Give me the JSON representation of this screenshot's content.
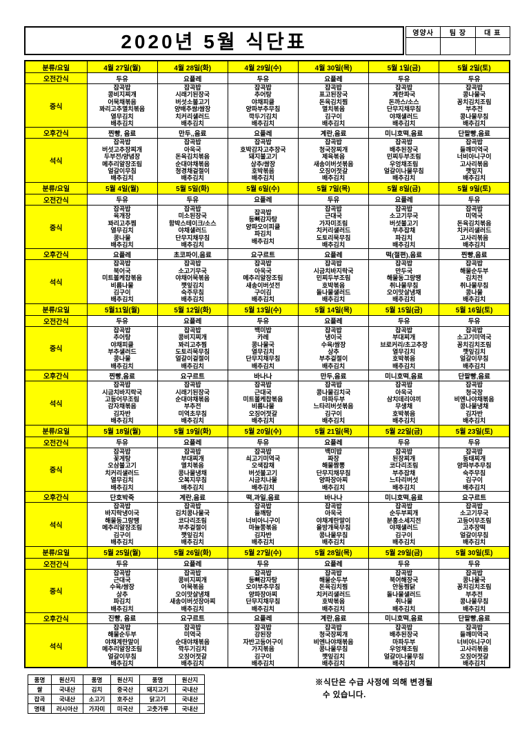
{
  "title": "2020년  5월  식단표",
  "signature": {
    "labels": [
      "영양사",
      "팀 장",
      "대 표"
    ]
  },
  "labels": {
    "category_day": "분류/요일",
    "morning_snack": "오전간식",
    "lunch": "중식",
    "afternoon_snack": "오후간식",
    "dinner": "석식"
  },
  "colors": {
    "highlight": "#ffff00",
    "border": "#000000"
  },
  "weeks": [
    {
      "days": [
        "4월 27일(월)",
        "4월 28일(화)",
        "4월 29일(수)",
        "4월 30일(목)",
        "5월 1일(금)",
        "5월 2일(토)"
      ],
      "morning": [
        "두유",
        "요플레",
        "두유",
        "요플레",
        "두유",
        "두유"
      ],
      "lunch": [
        [
          "잡곡밥",
          "콩비지찌개",
          "어묵채볶음",
          "꽈리고추멸치볶음",
          "열무김치",
          "배추김치"
        ],
        [
          "잡곡밥",
          "시래기된장국",
          "버섯소불고기",
          "양배추쌈/쌈장",
          "치커리샐러드",
          "배추김치"
        ],
        [
          "잡곡밥",
          "추어탕",
          "야채피클",
          "양파부추무침",
          "깍두기김치",
          "배추김치"
        ],
        [
          "잡곡밥",
          "표고된장국",
          "돈육김치찜",
          "멸치볶음",
          "김구이",
          "배추김치"
        ],
        [
          "잡곡밥",
          "계란파국",
          "돈까스/소스",
          "단무지채무침",
          "야채샐러드",
          "배추김치"
        ],
        [
          "잡곡밥",
          "콩나물국",
          "꽁치김치조림",
          "부추전",
          "콩나물무침",
          "배추김치"
        ]
      ],
      "afternoon": [
        "찐빵, 음료",
        "만두,,음료",
        "요플레",
        "계란,음료",
        "미니호떡,음료",
        "단팥빵,음료"
      ],
      "dinner": [
        [
          "잡곡밥",
          "버섯고추장찌개",
          "두부전/양념장",
          "메추리알장조림",
          "얼갈이무침",
          "배추김치"
        ],
        [
          "잡곡밥",
          "아욱국",
          "돈육김치볶음",
          "순대야채볶음",
          "청경채겉절이",
          "배추김치"
        ],
        [
          "잡곡밥",
          "호박감자고추장국",
          "돼지불고기",
          "상추/쌈장",
          "호박볶음",
          "배추김치"
        ],
        [
          "잡곡밥",
          "청국장찌개",
          "제육볶음",
          "새송이버섯볶음",
          "오징어젓갈",
          "배추김치"
        ],
        [
          "잡곡밥",
          "배추된장국",
          "민찌두부조림",
          "우엉채조림",
          "얼갈이나물무침",
          "배추김치"
        ],
        [
          "잡곡밥",
          "들깨미역국",
          "너비아니구이",
          "고사리볶음",
          "깻잎지",
          "배추김치"
        ]
      ]
    },
    {
      "days": [
        "5월 4일(월)",
        "5월 5일(화)",
        "5월 6일(수)",
        "5월 7일(목)",
        "5월 8일(금)",
        "5월 9일(토)"
      ],
      "morning": [
        "두유",
        "두유",
        "요플레",
        "두유",
        "요플레",
        "두유"
      ],
      "lunch": [
        [
          "잡곡밥",
          "육개장",
          "꽈리고추찜",
          "열무김치",
          "콩나물",
          "배추김치"
        ],
        [
          "잡곡밥",
          "미소된장국",
          "함박스테이크/소스",
          "야채샐러드",
          "단무지채무침",
          "배추김치"
        ],
        [
          "잡곡밥",
          "등뼈감자탕",
          "양파오이피클",
          "파김치",
          "배추김치"
        ],
        [
          "잡곡밥",
          "근대국",
          "가자미조림",
          "치커리샐러드",
          "도토리묵무침",
          "배추김치"
        ],
        [
          "잡곡밥",
          "소고기무국",
          "버섯불고기",
          "부추잡채",
          "파김치",
          "배추김치"
        ],
        [
          "잡곡밥",
          "미역국",
          "돈육김치볶음",
          "치커리샐러드",
          "고사리볶음",
          "배추김치"
        ]
      ],
      "afternoon": [
        "요플레",
        "초코파이,음료",
        "요구르트",
        "요플레",
        "떡(절편),음료",
        "찐빵,음료"
      ],
      "dinner": [
        [
          "잡곡밥",
          "북어국",
          "미트볼케찹볶음",
          "비름나물",
          "김구이",
          "배추김치"
        ],
        [
          "잡곡밥",
          "소고기무국",
          "야채어묵볶음",
          "깻잎김치",
          "숙주무침",
          "배추김치"
        ],
        [
          "잡곡밥",
          "아욱국",
          "메추리알장조림",
          "새송이버섯전",
          "구이김",
          "배추김치"
        ],
        [
          "잡곡밥",
          "시금치바지락국",
          "민찌두부조림",
          "호박볶음",
          "돌나물샐러드",
          "배추김치"
        ],
        [
          "잡곡밥",
          "만두국",
          "해물동그랑땡",
          "취나물무침",
          "오이맛살냉채",
          "배추김치"
        ],
        [
          "잡곡밥",
          "해물순두부",
          "김치전",
          "취나물무침",
          "콩나물",
          "배추김치"
        ]
      ]
    },
    {
      "days": [
        "5월11일(월)",
        "5월 12일(화)",
        "5월 13일(수)",
        "5월 14일(목)",
        "5월 15일(금)",
        "5월 16일(토)"
      ],
      "morning": [
        "두유",
        "요플레",
        "두유",
        "요플레",
        "두유",
        "두유"
      ],
      "lunch": [
        [
          "잡곡밥",
          "추어탕",
          "야채피클",
          "부추샐러드",
          "콩나물",
          "배추김치"
        ],
        [
          "잡곡밥",
          "콩비지찌개",
          "꽈리고추찜",
          "도토리묵무침",
          "얼갈이겉절이",
          "배추김치"
        ],
        [
          "백미밥",
          "카레",
          "콩나물국",
          "열무김치",
          "단무지채무침",
          "배추김치"
        ],
        [
          "잡곡밥",
          "냉이국",
          "수육/쌈장",
          "상추",
          "부추겉절이",
          "배추김치"
        ],
        [
          "잡곡밥",
          "부대찌개",
          "브로커리/초고추장",
          "열무김치",
          "호박볶음",
          "배추김치"
        ],
        [
          "잡곡밥",
          "소고기미역국",
          "꽁치김치조림",
          "깻잎김치",
          "얼갈이무침",
          "배추김치"
        ]
      ],
      "afternoon": [
        "찐빵,음료",
        "요구르트",
        "바나나",
        "만두,음료",
        "미니호떡,음료",
        "단팥빵,음료"
      ],
      "dinner": [
        [
          "잡곡밥",
          "시금치바지락국",
          "고등어무조림",
          "감자채볶음",
          "김자반",
          "배추김치"
        ],
        [
          "잡곡밥",
          "시래기된장국",
          "순대야채볶음",
          "부추전",
          "미역초무침",
          "배추김치"
        ],
        [
          "잡곡밥",
          "근대국",
          "미트볼케찹볶음",
          "비름나물",
          "오징어젓갈",
          "배추김치"
        ],
        [
          "잡곡밥",
          "콩나물김치국",
          "마파두부",
          "느타리버섯볶음",
          "김구이",
          "배추김치"
        ],
        [
          "잡곡밥",
          "아욱국",
          "삼치데리야끼",
          "무생채",
          "호박볶음",
          "배추김치"
        ],
        [
          "잡곡밥",
          "청국장",
          "비엔나야채볶음",
          "콩나물냉채",
          "김자반",
          "배추김치"
        ]
      ]
    },
    {
      "days": [
        "5월 18일(월)",
        "5월 19일(화)",
        "5월 20일(수)",
        "5월 21일(목)",
        "5월 22일(금)",
        "5월 23일(토)"
      ],
      "morning": [
        "두유",
        "요플레",
        "두유",
        "요플레",
        "두유",
        "두유"
      ],
      "lunch": [
        [
          "잡곡밥",
          "꽃게탕",
          "오삼불고기",
          "치커리샐러드",
          "열무김치",
          "배추김치"
        ],
        [
          "잡곡밥",
          "부대찌개",
          "멸치볶음",
          "콩나물냉채",
          "오복지무침",
          "배추김치"
        ],
        [
          "잡곡밥",
          "쇠고기미역국",
          "오색잡채",
          "버섯불고기",
          "시금치나물",
          "배추김치"
        ],
        [
          "백미밥",
          "짜장",
          "해물짬뽕",
          "단무지채무침",
          "양파장아찌",
          "배추김치"
        ],
        [
          "잡곡밥",
          "된장찌개",
          "코다리조림",
          "부추잡채",
          "느타리버섯",
          "배추김치"
        ],
        [
          "잡곡밥",
          "동태찌개",
          "양파부추무침",
          "숙주무침",
          "김구이",
          "배추김치"
        ]
      ],
      "afternoon": [
        "단호박죽",
        "계란,음료",
        "떡,과일,음료",
        "바나나",
        "미니호떡,음료",
        "요구르트"
      ],
      "dinner": [
        [
          "잡곡밥",
          "바지락냉이국",
          "해물동그랑땡",
          "메추리알장조림",
          "김구이",
          "배추김치"
        ],
        [
          "잡곡밥",
          "김치콩나물국",
          "코다리조림",
          "부추겉절이",
          "깻잎김치",
          "배추김치"
        ],
        [
          "잡곡밥",
          "들깨탕",
          "너비아니구이",
          "마늘쫑볶음",
          "김자반",
          "배추김치"
        ],
        [
          "잡곡밥",
          "아욱국",
          "야채계란말이",
          "올방개묵무침",
          "콩나물무침",
          "배추김치"
        ],
        [
          "잡곡밥",
          "순두부찌개",
          "분홍소세지전",
          "야채샐러드",
          "김구이",
          "배추김치"
        ],
        [
          "잡곡밥",
          "소고기무국",
          "고등어무조림",
          "고추장떡",
          "얼갈이무침",
          "배추김치"
        ]
      ]
    },
    {
      "days": [
        "5월 25일(월)",
        "5월 26일(화)",
        "5월 27일(수)",
        "5월 28일(목)",
        "5월 29일(금)",
        "5월 30일(토)"
      ],
      "morning": [
        "두유",
        "요플레",
        "두유",
        "요플레",
        "두유",
        "두유"
      ],
      "lunch": [
        [
          "잡곡밥",
          "근대국",
          "수육/쌈장",
          "상추",
          "파김치",
          "배추김치"
        ],
        [
          "잡곡밥",
          "콩비지찌개",
          "어묵볶음",
          "오이맛살냉채",
          "새송이버섯장아찌",
          "배추김치"
        ],
        [
          "잡곡밥",
          "등뼈감자탕",
          "오이부추무침",
          "양파장아찌",
          "단무지채무침",
          "배추김치"
        ],
        [
          "잡곡밥",
          "해물순두부",
          "돈육김치찜",
          "치커리샐러드",
          "호박볶음",
          "배추김치"
        ],
        [
          "잡곡밥",
          "북어해장국",
          "안동찜닭",
          "돌나물샐러드",
          "취나물",
          "배추김치"
        ],
        [
          "잡곡밥",
          "콩나물국",
          "꽁치김치조림",
          "부추전",
          "콩나물무침",
          "배추김치"
        ]
      ],
      "afternoon": [
        "진빵, 음료",
        "요구르트",
        "요플레",
        "계란,음료",
        "미니호떡,음료",
        "단팥빵,음료"
      ],
      "dinner": [
        [
          "잡곡밥",
          "해물순두부",
          "야채계란말이",
          "메추리알장조림",
          "얼갈이무침",
          "배추김치"
        ],
        [
          "잡곡밥",
          "미역국",
          "순대야채볶음",
          "깍두기김치",
          "오징어젓갈",
          "배추김치"
        ],
        [
          "잡곡밥",
          "강된장",
          "자반고등어구이",
          "가지볶음",
          "김구이",
          "배추김치"
        ],
        [
          "잡곡밥",
          "청국장찌개",
          "비엔나야채볶음",
          "콩나물무침",
          "깻잎김치",
          "배추김치"
        ],
        [
          "잡곡밥",
          "배추된장국",
          "마파두부",
          "우엉채조림",
          "얼갈이나물무침",
          "배추김치"
        ],
        [
          "잡곡밥",
          "들깨미역국",
          "너비아니구이",
          "고사리볶음",
          "오징어젓갈",
          "배추김치"
        ]
      ]
    }
  ],
  "origin_table": {
    "headers": [
      "품명",
      "원산지",
      "품명",
      "원산지",
      "품명",
      "원산지"
    ],
    "rows": [
      [
        "쌀",
        "국내산",
        "김치",
        "중국산",
        "돼지고기",
        "국내산"
      ],
      [
        "잡곡",
        "국내산",
        "소고기",
        "호주산",
        "닭고기",
        "국내산"
      ],
      [
        "명태",
        "러시아산",
        "가자미",
        "미국산",
        "고춧가루",
        "국내산"
      ]
    ]
  },
  "note": {
    "line1": "※식단은 수급 사정에 의해 변경될",
    "line2": "수 있습니다."
  }
}
